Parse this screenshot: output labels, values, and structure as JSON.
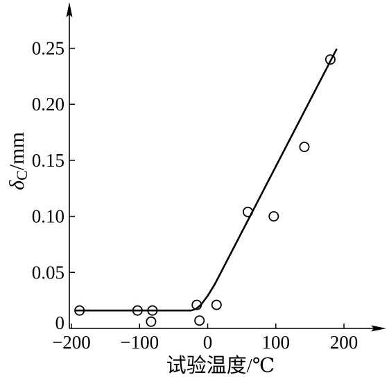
{
  "chart_data": {
    "type": "scatter",
    "xlabel": "试验温度/℃",
    "ylabel": {
      "symbol": "δ",
      "subscript": "C",
      "unit": "/mm"
    },
    "xlim": [
      -203,
      260
    ],
    "ylim": [
      0,
      0.29
    ],
    "x_ticks": [
      -200,
      -100,
      0,
      100,
      200
    ],
    "x_tick_labels": [
      "−200",
      "−100",
      "0",
      "100",
      "200"
    ],
    "y_ticks": [
      0,
      0.05,
      0.1,
      0.15,
      0.2,
      0.25
    ],
    "y_tick_labels": [
      "0",
      "0.05",
      "0.10",
      "0.15",
      "0.20",
      "0.25"
    ],
    "grid": false,
    "legend": "none",
    "series": [
      {
        "type": "scatter",
        "color": "#000000",
        "x": [
          -188,
          -103,
          -81,
          -83,
          -16,
          -12,
          13,
          59,
          97,
          142,
          180
        ],
        "y": [
          0.016,
          0.016,
          0.016,
          0.006,
          0.021,
          0.007,
          0.021,
          0.104,
          0.1,
          0.162,
          0.24
        ]
      },
      {
        "type": "line",
        "color": "#000000",
        "x": [
          -193,
          -24,
          -17,
          -10,
          0,
          11,
          189
        ],
        "y": [
          0.016,
          0.016,
          0.0175,
          0.021,
          0.029,
          0.04,
          0.249
        ]
      }
    ]
  }
}
